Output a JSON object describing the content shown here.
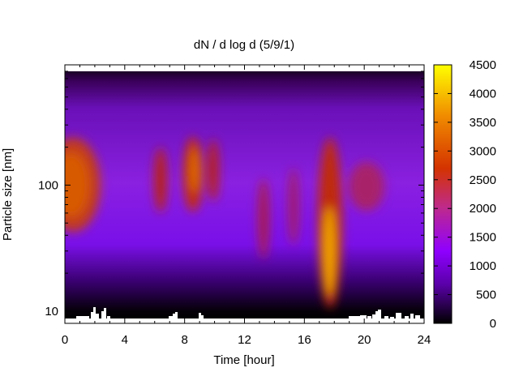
{
  "chart_data": {
    "type": "heatmap",
    "title": "dN / d log d (5/9/1)",
    "xlabel": "Time [hour]",
    "ylabel": "Particle size [nm]",
    "xlim": [
      0,
      24
    ],
    "ylim": [
      8,
      900
    ],
    "yscale": "log",
    "x_ticks": [
      0,
      4,
      8,
      12,
      16,
      20,
      24
    ],
    "y_ticks": [
      10,
      100
    ],
    "colorbar": {
      "min": 0,
      "max": 4500,
      "ticks": [
        0,
        500,
        1000,
        1500,
        2000,
        2500,
        3000,
        3500,
        4000,
        4500
      ],
      "colormap": [
        "#000000",
        "#5a00a8",
        "#8f00ff",
        "#bf2a8a",
        "#d43300",
        "#f08a00",
        "#ffff00"
      ]
    },
    "features": [
      {
        "time": 0.5,
        "size_nm": 100,
        "value": 3000
      },
      {
        "time": 6.4,
        "size_nm": 105,
        "value": 2800
      },
      {
        "time": 8.6,
        "size_nm": 110,
        "value": 3200
      },
      {
        "time": 9.9,
        "size_nm": 120,
        "value": 2800
      },
      {
        "time": 13.5,
        "size_nm": 45,
        "value": 2500
      },
      {
        "time": 15.1,
        "size_nm": 60,
        "value": 2400
      },
      {
        "time": 17.7,
        "size_nm": 30,
        "value": 4200
      },
      {
        "time": 20.5,
        "size_nm": 100,
        "value": 2000
      }
    ]
  }
}
